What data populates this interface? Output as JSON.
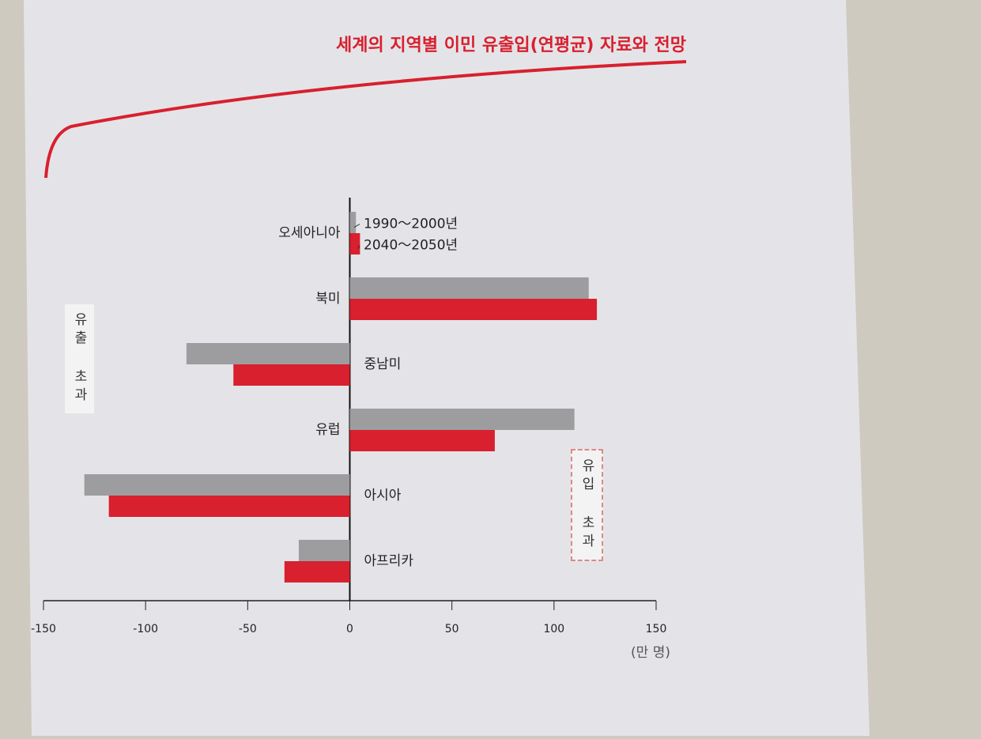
{
  "chart_data": {
    "type": "hbar",
    "title": "세계의 지역별 이민 유출입(연평균) 자료와 전망",
    "x_label": "(만 명)",
    "annotations": [
      "유출 초과",
      "유입 초과"
    ],
    "categories": [
      "오세아니아",
      "북미",
      "중남미",
      "유럽",
      "아시아",
      "아프리카"
    ],
    "series": [
      {
        "name": "1990～2000년",
        "color": "#9d9d9f",
        "values": [
          3,
          117,
          -80,
          110,
          -130,
          -25
        ]
      },
      {
        "name": "2040～2050년",
        "color": "#d8202e",
        "values": [
          5,
          121,
          -57,
          71,
          -118,
          -32
        ]
      }
    ],
    "xlim": [
      -150,
      150
    ],
    "xticks": [
      -150,
      -100,
      -50,
      0,
      50,
      100,
      150
    ]
  }
}
